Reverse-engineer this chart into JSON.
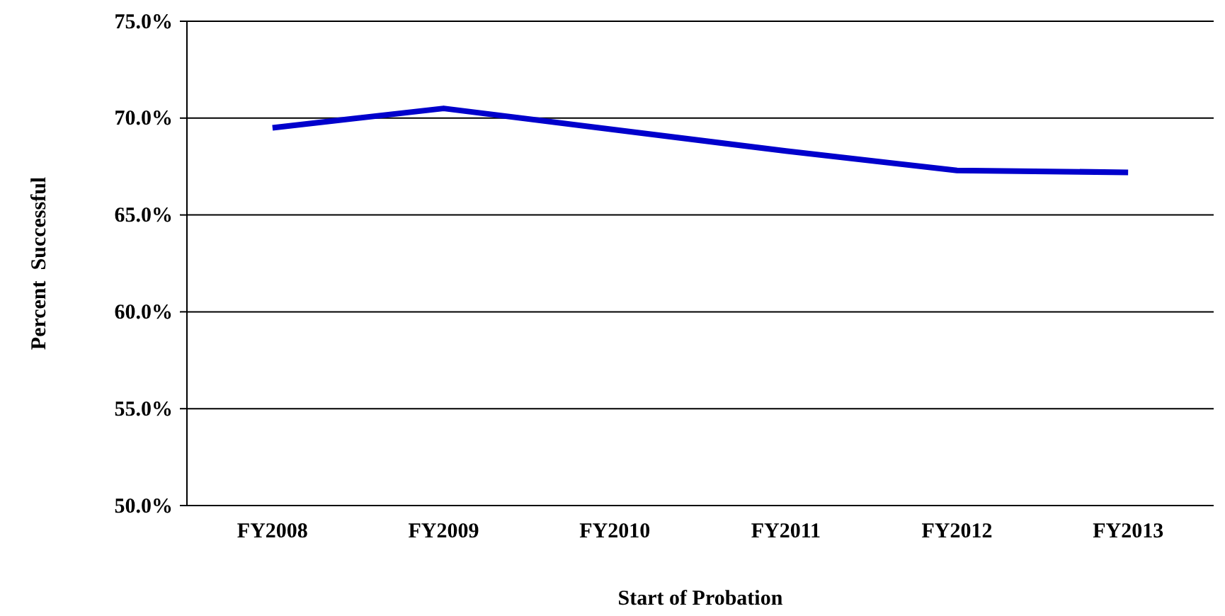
{
  "chart_data": {
    "type": "line",
    "xlabel": "Start of Probation",
    "ylabel": "Percent  Successful",
    "categories": [
      "FY2008",
      "FY2009",
      "FY2010",
      "FY2011",
      "FY2012",
      "FY2013"
    ],
    "series": [
      {
        "color": "#0000cc",
        "values": [
          69.5,
          70.5,
          69.4,
          68.3,
          67.3,
          67.2
        ]
      }
    ],
    "ylim": [
      50,
      75
    ],
    "yticks": [
      {
        "value": 50,
        "label": "50.0%"
      },
      {
        "value": 55,
        "label": "55.0%"
      },
      {
        "value": 60,
        "label": "60.0%"
      },
      {
        "value": 65,
        "label": "65.0%"
      },
      {
        "value": 70,
        "label": "70.0%"
      },
      {
        "value": 75,
        "label": "75.0%"
      }
    ],
    "grid": "y",
    "marker": "none",
    "line_style": "solid"
  }
}
